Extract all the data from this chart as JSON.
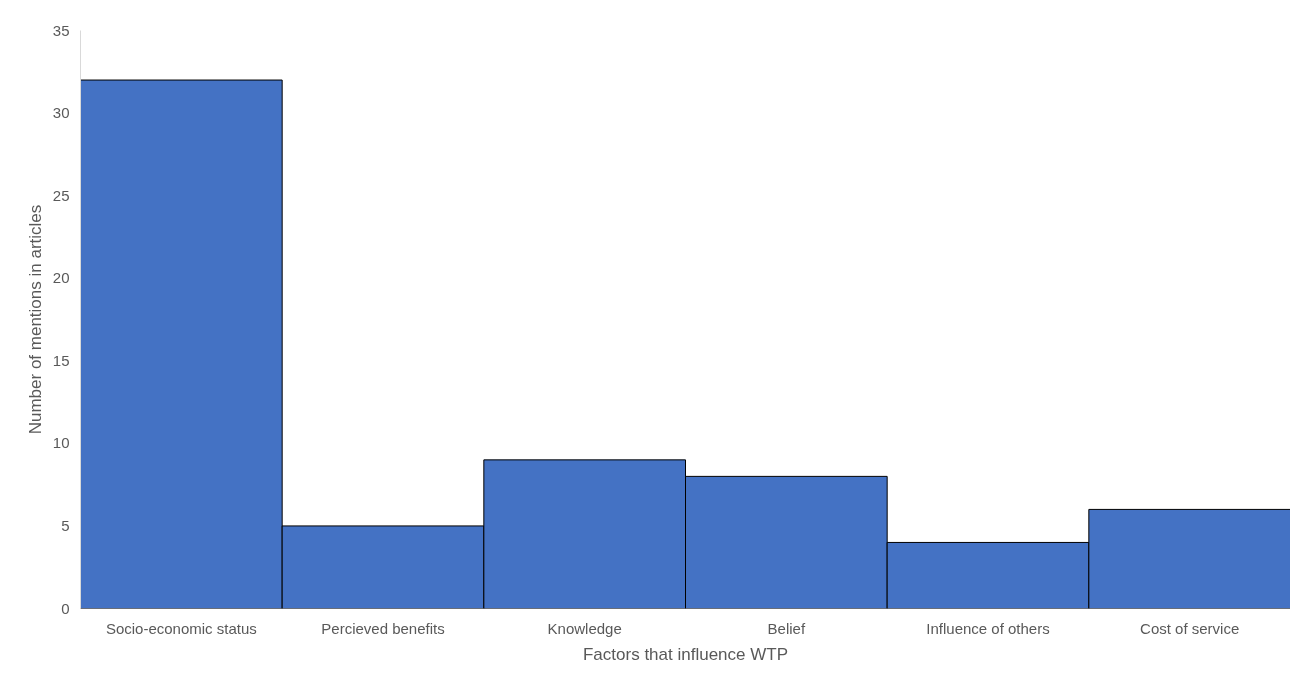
{
  "chart_data": {
    "type": "bar",
    "xlabel": "Factors that influence WTP",
    "ylabel": "Number of mentions in articles",
    "categories": [
      "Socio-economic status",
      "Percieved benefits",
      "Knowledge",
      "Belief",
      "Influence of others",
      "Cost of service"
    ],
    "values": [
      32,
      5,
      9,
      8,
      4,
      6
    ],
    "color": "#4472c4",
    "ylim": [
      0,
      35
    ],
    "yticks": [
      0,
      5,
      10,
      15,
      20,
      25,
      30,
      35
    ],
    "grid": false
  }
}
